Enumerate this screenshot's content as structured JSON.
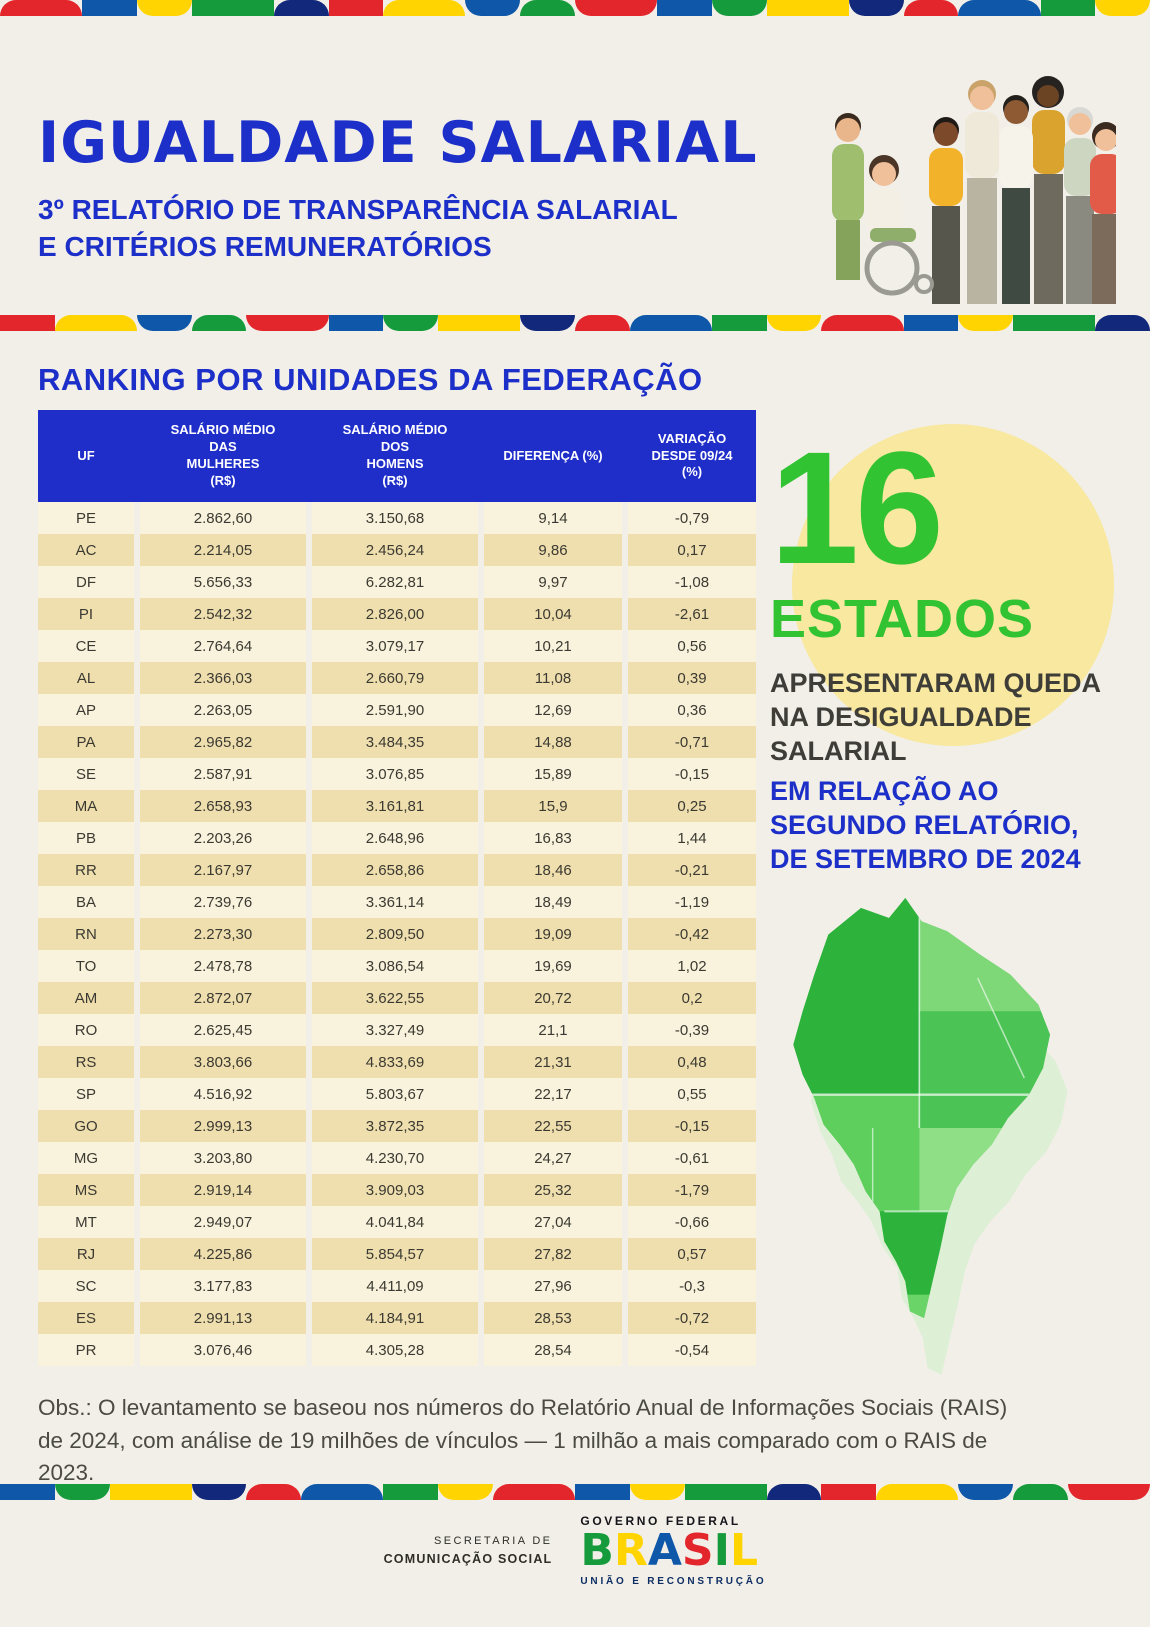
{
  "header": {
    "title": "IGUALDADE SALARIAL",
    "subtitle": "3º RELATÓRIO DE TRANSPARÊNCIA SALARIAL\nE CRITÉRIOS REMUNERATÓRIOS"
  },
  "ranking": {
    "heading": "RANKING POR UNIDADES DA FEDERAÇÃO",
    "columns": [
      "UF",
      "SALÁRIO MÉDIO\nDAS\nMULHERES\n(R$)",
      "SALÁRIO MÉDIO\nDOS\nHOMENS\n(R$)",
      "DIFERENÇA (%)",
      "VARIAÇÃO\nDESDE 09/24\n(%)"
    ],
    "rows": [
      [
        "PE",
        "2.862,60",
        "3.150,68",
        "9,14",
        "-0,79"
      ],
      [
        "AC",
        "2.214,05",
        "2.456,24",
        "9,86",
        "0,17"
      ],
      [
        "DF",
        "5.656,33",
        "6.282,81",
        "9,97",
        "-1,08"
      ],
      [
        "PI",
        "2.542,32",
        "2.826,00",
        "10,04",
        "-2,61"
      ],
      [
        "CE",
        "2.764,64",
        "3.079,17",
        "10,21",
        "0,56"
      ],
      [
        "AL",
        "2.366,03",
        "2.660,79",
        "11,08",
        "0,39"
      ],
      [
        "AP",
        "2.263,05",
        "2.591,90",
        "12,69",
        "0,36"
      ],
      [
        "PA",
        "2.965,82",
        "3.484,35",
        "14,88",
        "-0,71"
      ],
      [
        "SE",
        "2.587,91",
        "3.076,85",
        "15,89",
        "-0,15"
      ],
      [
        "MA",
        "2.658,93",
        "3.161,81",
        "15,9",
        "0,25"
      ],
      [
        "PB",
        "2.203,26",
        "2.648,96",
        "16,83",
        "1,44"
      ],
      [
        "RR",
        "2.167,97",
        "2.658,86",
        "18,46",
        "-0,21"
      ],
      [
        "BA",
        "2.739,76",
        "3.361,14",
        "18,49",
        "-1,19"
      ],
      [
        "RN",
        "2.273,30",
        "2.809,50",
        "19,09",
        "-0,42"
      ],
      [
        "TO",
        "2.478,78",
        "3.086,54",
        "19,69",
        "1,02"
      ],
      [
        "AM",
        "2.872,07",
        "3.622,55",
        "20,72",
        "0,2"
      ],
      [
        "RO",
        "2.625,45",
        "3.327,49",
        "21,1",
        "-0,39"
      ],
      [
        "RS",
        "3.803,66",
        "4.833,69",
        "21,31",
        "0,48"
      ],
      [
        "SP",
        "4.516,92",
        "5.803,67",
        "22,17",
        "0,55"
      ],
      [
        "GO",
        "2.999,13",
        "3.872,35",
        "22,55",
        "-0,15"
      ],
      [
        "MG",
        "3.203,80",
        "4.230,70",
        "24,27",
        "-0,61"
      ],
      [
        "MS",
        "2.919,14",
        "3.909,03",
        "25,32",
        "-1,79"
      ],
      [
        "MT",
        "2.949,07",
        "4.041,84",
        "27,04",
        "-0,66"
      ],
      [
        "RJ",
        "4.225,86",
        "5.854,57",
        "27,82",
        "0,57"
      ],
      [
        "SC",
        "3.177,83",
        "4.411,09",
        "27,96",
        "-0,3"
      ],
      [
        "ES",
        "2.991,13",
        "4.184,91",
        "28,53",
        "-0,72"
      ],
      [
        "PR",
        "3.076,46",
        "4.305,28",
        "28,54",
        "-0,54"
      ]
    ]
  },
  "highlight": {
    "number": "16",
    "label": "ESTADOS",
    "dark_text": "APRESENTARAM QUEDA\nNA DESIGUALDADE\nSALARIAL",
    "blue_text": "EM RELAÇÃO AO\nSEGUNDO RELATÓRIO,\nDE SETEMBRO DE 2024"
  },
  "note": "Obs.: O levantamento se baseou nos números do Relatório Anual de Informações Sociais (RAIS)\nde 2024, com análise de 19 milhões de vínculos — 1 milhão a mais comparado com o RAIS de 2023.",
  "footer": {
    "secretaria": "SECRETARIA DE",
    "comunicacao": "COMUNICAÇÃO SOCIAL",
    "governo_federal": "GOVERNO FEDERAL",
    "brasil": "BRASIL",
    "uniao": "UNIÃO E RECONSTRUÇÃO"
  },
  "colors": {
    "page_bg": "#f2efe9",
    "title_blue": "#1c2fc8",
    "header_blue": "#1f2dc9",
    "green": "#31c331",
    "row_light": "#f9f2dc",
    "row_dark": "#efdfae",
    "circle_yellow": "#f8e8a0",
    "text_dark": "#3b3a32",
    "note_gray": "#4b4a43",
    "brand_red": "#e3262c",
    "brand_blue": "#0f57a8",
    "brand_green": "#169b3c",
    "brand_yellow": "#ffd400",
    "brand_navy": "#12287a"
  }
}
